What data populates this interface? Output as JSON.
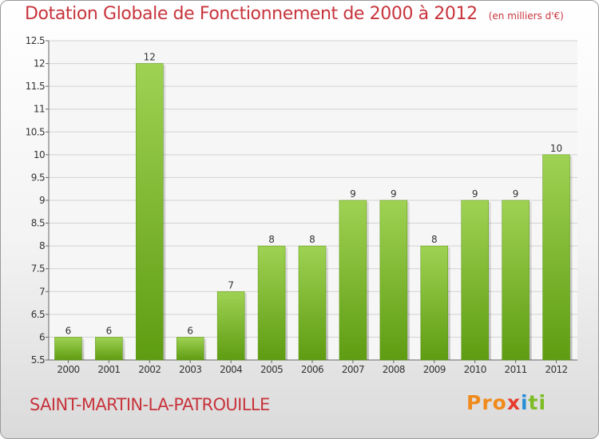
{
  "chart_data": {
    "type": "bar",
    "title": "Dotation Globale de Fonctionnement de 2000 à 2012",
    "subtitle": "(en milliers d'€)",
    "categories": [
      "2000",
      "2001",
      "2002",
      "2003",
      "2004",
      "2005",
      "2006",
      "2007",
      "2008",
      "2009",
      "2010",
      "2011",
      "2012"
    ],
    "values": [
      6,
      6,
      12,
      6,
      7,
      8,
      8,
      9,
      9,
      8,
      9,
      9,
      10
    ],
    "ylim": [
      5.5,
      12.5
    ],
    "yticks": [
      "5.5",
      "6",
      "6.5",
      "7",
      "7.5",
      "8",
      "8.5",
      "9",
      "9.5",
      "10",
      "10.5",
      "11",
      "11.5",
      "12",
      "12.5"
    ],
    "xlabel": "",
    "ylabel": "",
    "grid": true,
    "bar_color": "#7cbc24"
  },
  "footer": {
    "commune": "SAINT-MARTIN-LA-PATROUILLE",
    "logo_parts": [
      "Pro",
      "x",
      "i",
      "ti"
    ]
  }
}
